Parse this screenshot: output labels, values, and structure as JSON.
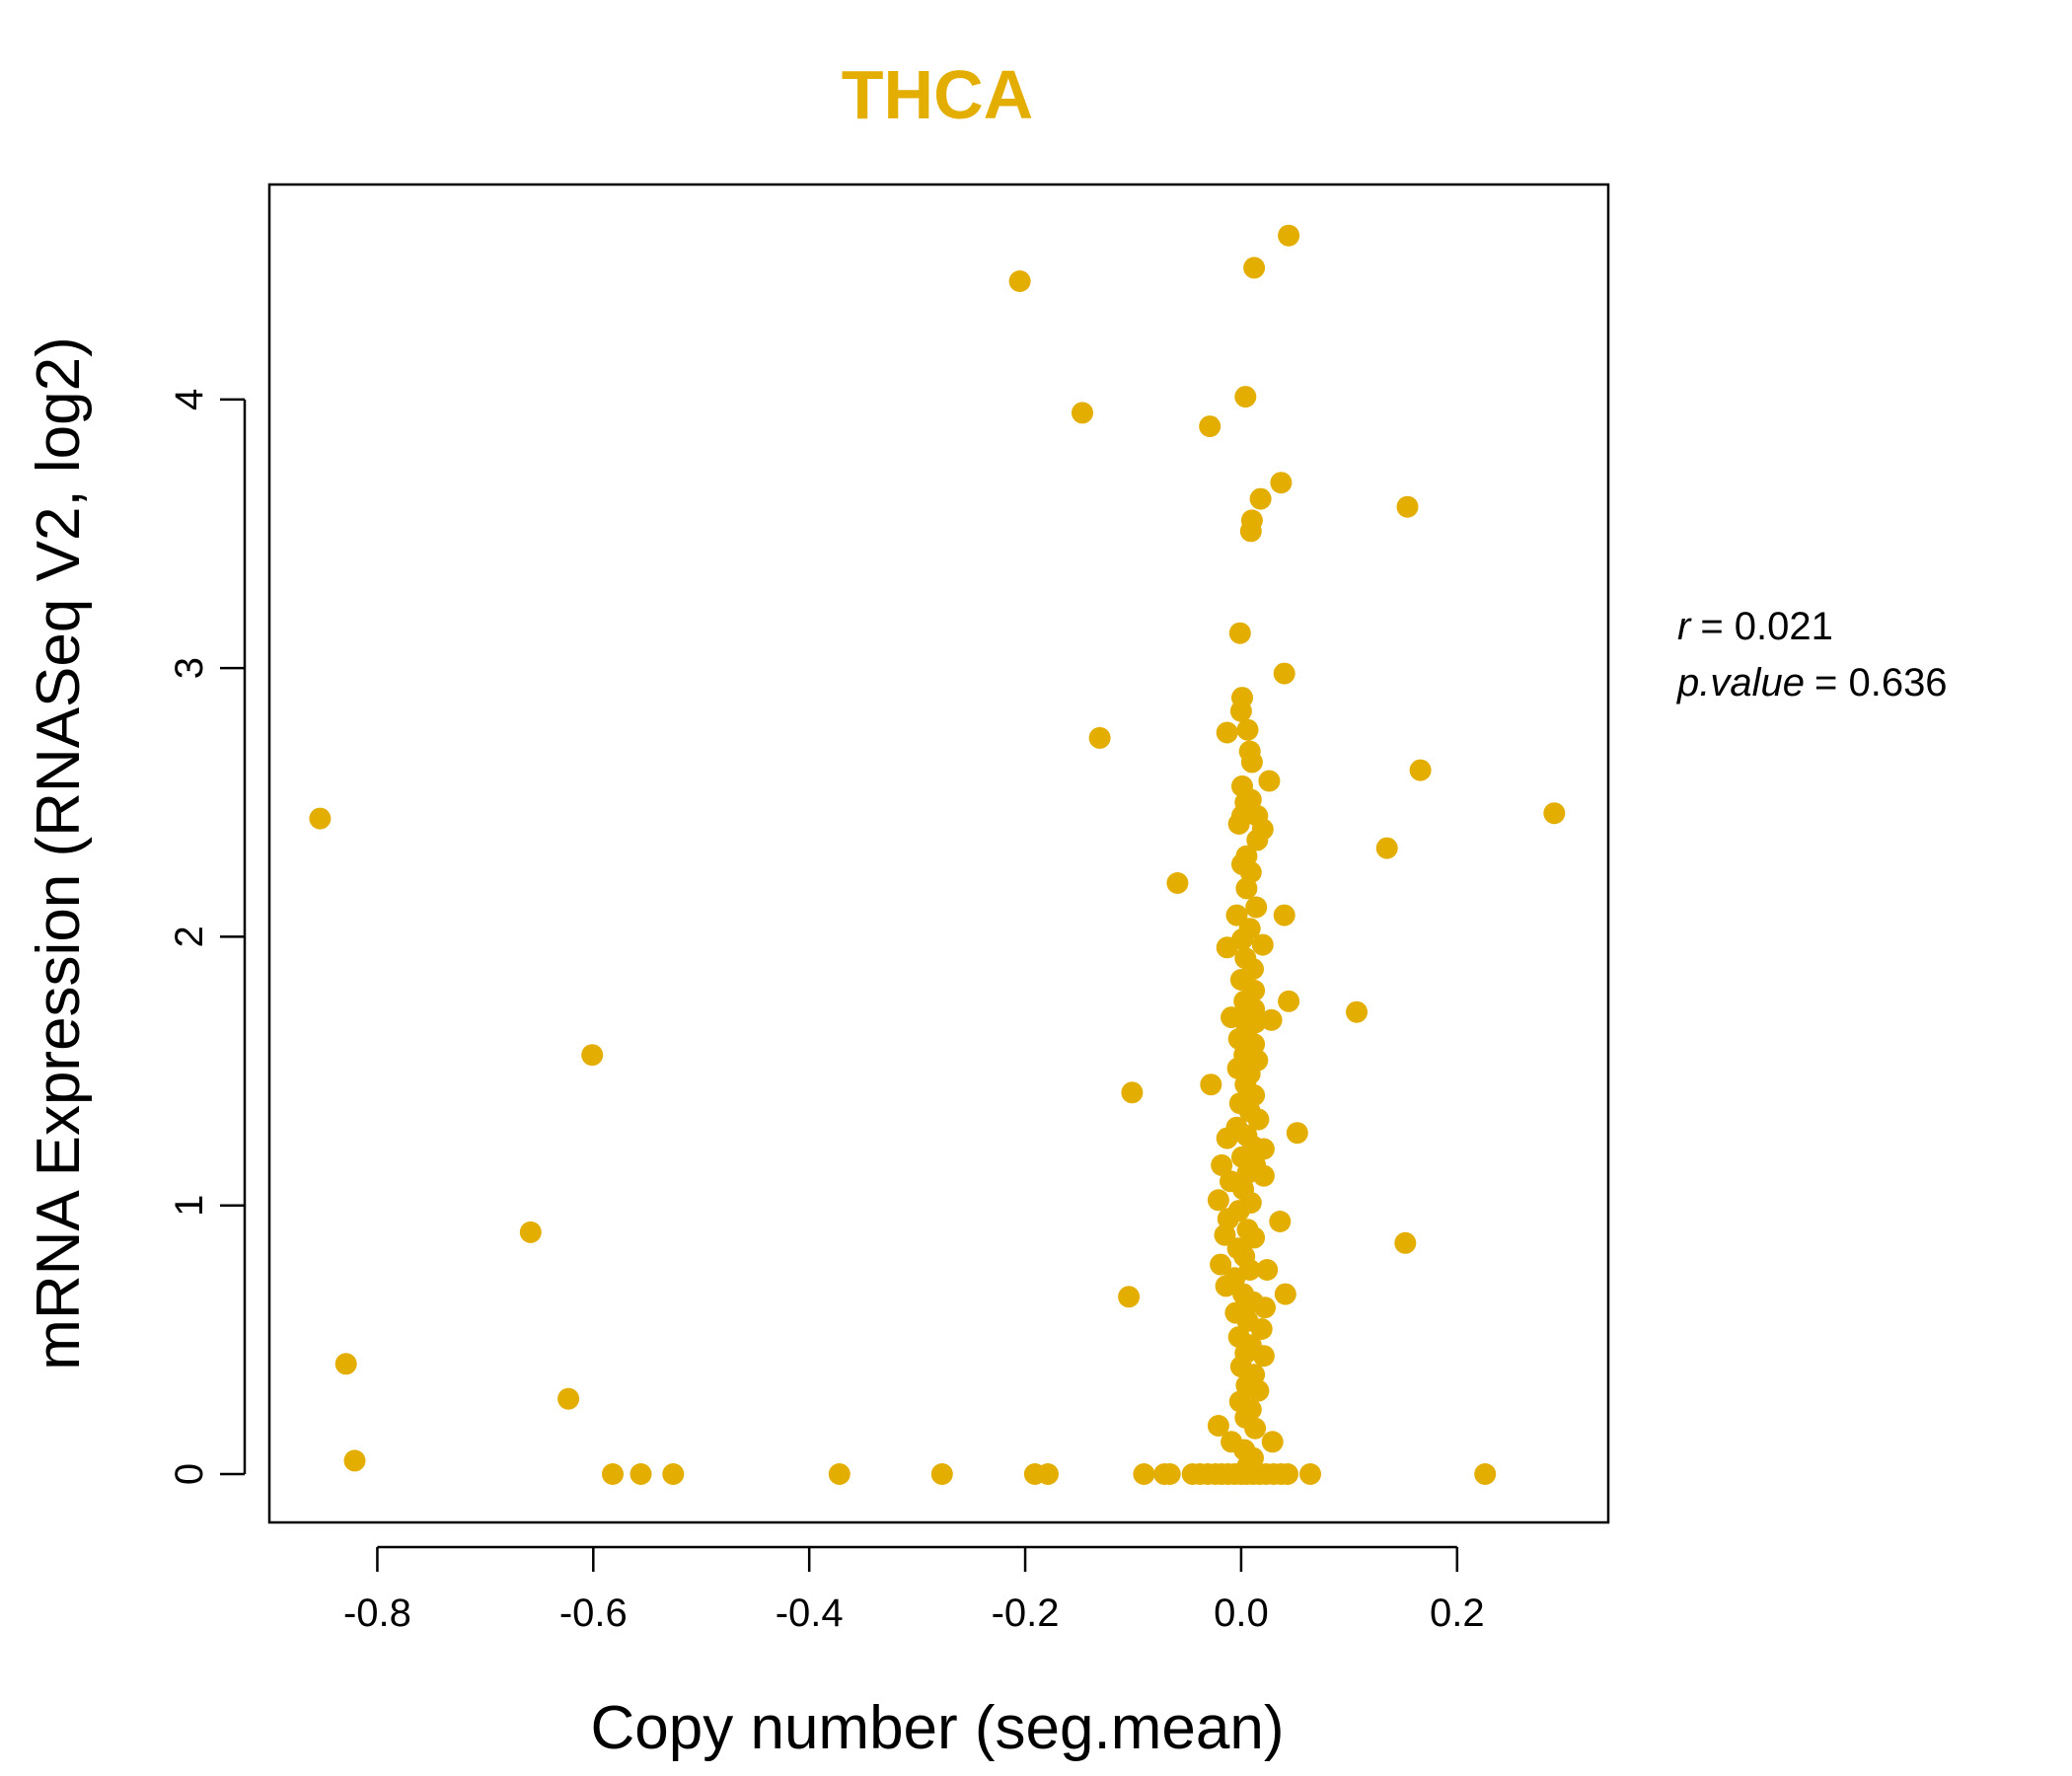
{
  "chart_data": {
    "type": "scatter",
    "title": "THCA",
    "xlabel": "Copy number (seg.mean)",
    "ylabel": "mRNA Expression (RNASeq V2, log2)",
    "xlim": [
      -0.9,
      0.34
    ],
    "ylim": [
      -0.18,
      4.8
    ],
    "x_ticks": [
      -0.8,
      -0.6,
      -0.4,
      -0.2,
      0.0,
      0.2
    ],
    "x_tick_labels": [
      "-0.8",
      "-0.6",
      "-0.4",
      "-0.2",
      "0.0",
      "0.2"
    ],
    "y_ticks": [
      0,
      1,
      2,
      3,
      4
    ],
    "y_tick_labels": [
      "0",
      "1",
      "2",
      "3",
      "4"
    ],
    "grid": false,
    "point_color": "#E3AE00",
    "stats": {
      "r_label": "r",
      "r_value": "= 0.021",
      "p_label": "p.value",
      "p_value": "= 0.636"
    },
    "points": [
      {
        "x": 0.044,
        "y": 4.61
      },
      {
        "x": 0.012,
        "y": 4.49
      },
      {
        "x": -0.205,
        "y": 4.44
      },
      {
        "x": 0.004,
        "y": 4.01
      },
      {
        "x": -0.147,
        "y": 3.95
      },
      {
        "x": -0.029,
        "y": 3.9
      },
      {
        "x": 0.037,
        "y": 3.69
      },
      {
        "x": 0.018,
        "y": 3.63
      },
      {
        "x": 0.154,
        "y": 3.6
      },
      {
        "x": 0.01,
        "y": 3.55
      },
      {
        "x": 0.009,
        "y": 3.51
      },
      {
        "x": -0.001,
        "y": 3.13
      },
      {
        "x": 0.04,
        "y": 2.98
      },
      {
        "x": 0.001,
        "y": 2.89
      },
      {
        "x": 0.0,
        "y": 2.84
      },
      {
        "x": 0.006,
        "y": 2.77
      },
      {
        "x": -0.013,
        "y": 2.76
      },
      {
        "x": -0.131,
        "y": 2.74
      },
      {
        "x": 0.008,
        "y": 2.69
      },
      {
        "x": 0.01,
        "y": 2.65
      },
      {
        "x": 0.166,
        "y": 2.62
      },
      {
        "x": 0.026,
        "y": 2.58
      },
      {
        "x": 0.001,
        "y": 2.56
      },
      {
        "x": 0.004,
        "y": 2.5
      },
      {
        "x": 0.009,
        "y": 2.51
      },
      {
        "x": -0.853,
        "y": 2.44
      },
      {
        "x": 0.29,
        "y": 2.46
      },
      {
        "x": 0.001,
        "y": 2.45
      },
      {
        "x": 0.015,
        "y": 2.45
      },
      {
        "x": -0.002,
        "y": 2.42
      },
      {
        "x": 0.02,
        "y": 2.4
      },
      {
        "x": 0.015,
        "y": 2.36
      },
      {
        "x": 0.135,
        "y": 2.33
      },
      {
        "x": 0.005,
        "y": 2.3
      },
      {
        "x": 0.001,
        "y": 2.27
      },
      {
        "x": 0.009,
        "y": 2.24
      },
      {
        "x": -0.059,
        "y": 2.2
      },
      {
        "x": 0.005,
        "y": 2.18
      },
      {
        "x": 0.014,
        "y": 2.11
      },
      {
        "x": 0.04,
        "y": 2.08
      },
      {
        "x": -0.004,
        "y": 2.08
      },
      {
        "x": 0.008,
        "y": 2.03
      },
      {
        "x": 0.001,
        "y": 1.99
      },
      {
        "x": 0.02,
        "y": 1.97
      },
      {
        "x": -0.013,
        "y": 1.96
      },
      {
        "x": 0.004,
        "y": 1.92
      },
      {
        "x": 0.011,
        "y": 1.88
      },
      {
        "x": 0.0,
        "y": 1.84
      },
      {
        "x": 0.012,
        "y": 1.8
      },
      {
        "x": 0.044,
        "y": 1.76
      },
      {
        "x": 0.003,
        "y": 1.76
      },
      {
        "x": 0.107,
        "y": 1.72
      },
      {
        "x": 0.012,
        "y": 1.73
      },
      {
        "x": 0.0,
        "y": 1.7
      },
      {
        "x": -0.009,
        "y": 1.7
      },
      {
        "x": 0.028,
        "y": 1.69
      },
      {
        "x": 0.013,
        "y": 1.68
      },
      {
        "x": 0.005,
        "y": 1.65
      },
      {
        "x": -0.002,
        "y": 1.62
      },
      {
        "x": 0.012,
        "y": 1.6
      },
      {
        "x": -0.601,
        "y": 1.56
      },
      {
        "x": 0.003,
        "y": 1.56
      },
      {
        "x": 0.015,
        "y": 1.54
      },
      {
        "x": -0.003,
        "y": 1.51
      },
      {
        "x": 0.008,
        "y": 1.49
      },
      {
        "x": -0.028,
        "y": 1.45
      },
      {
        "x": 0.004,
        "y": 1.45
      },
      {
        "x": -0.101,
        "y": 1.42
      },
      {
        "x": 0.012,
        "y": 1.41
      },
      {
        "x": -0.001,
        "y": 1.38
      },
      {
        "x": 0.008,
        "y": 1.35
      },
      {
        "x": 0.016,
        "y": 1.32
      },
      {
        "x": -0.004,
        "y": 1.29
      },
      {
        "x": 0.052,
        "y": 1.27
      },
      {
        "x": 0.005,
        "y": 1.26
      },
      {
        "x": -0.013,
        "y": 1.25
      },
      {
        "x": 0.011,
        "y": 1.22
      },
      {
        "x": 0.021,
        "y": 1.21
      },
      {
        "x": 0.001,
        "y": 1.18
      },
      {
        "x": -0.018,
        "y": 1.15
      },
      {
        "x": 0.013,
        "y": 1.15
      },
      {
        "x": 0.006,
        "y": 1.12
      },
      {
        "x": 0.021,
        "y": 1.11
      },
      {
        "x": -0.01,
        "y": 1.09
      },
      {
        "x": 0.002,
        "y": 1.06
      },
      {
        "x": -0.021,
        "y": 1.02
      },
      {
        "x": 0.009,
        "y": 1.01
      },
      {
        "x": -0.002,
        "y": 0.98
      },
      {
        "x": 0.036,
        "y": 0.94
      },
      {
        "x": -0.012,
        "y": 0.95
      },
      {
        "x": 0.006,
        "y": 0.91
      },
      {
        "x": -0.015,
        "y": 0.89
      },
      {
        "x": -0.658,
        "y": 0.9
      },
      {
        "x": 0.012,
        "y": 0.88
      },
      {
        "x": 0.152,
        "y": 0.86
      },
      {
        "x": -0.003,
        "y": 0.84
      },
      {
        "x": 0.003,
        "y": 0.81
      },
      {
        "x": -0.019,
        "y": 0.78
      },
      {
        "x": 0.024,
        "y": 0.76
      },
      {
        "x": 0.008,
        "y": 0.76
      },
      {
        "x": -0.006,
        "y": 0.73
      },
      {
        "x": -0.014,
        "y": 0.7
      },
      {
        "x": 0.041,
        "y": 0.67
      },
      {
        "x": -0.104,
        "y": 0.66
      },
      {
        "x": 0.002,
        "y": 0.67
      },
      {
        "x": 0.011,
        "y": 0.64
      },
      {
        "x": 0.022,
        "y": 0.62
      },
      {
        "x": -0.005,
        "y": 0.6
      },
      {
        "x": 0.006,
        "y": 0.57
      },
      {
        "x": 0.019,
        "y": 0.54
      },
      {
        "x": -0.002,
        "y": 0.51
      },
      {
        "x": 0.009,
        "y": 0.48
      },
      {
        "x": 0.004,
        "y": 0.45
      },
      {
        "x": 0.021,
        "y": 0.44
      },
      {
        "x": -0.829,
        "y": 0.41
      },
      {
        "x": 0.0,
        "y": 0.4
      },
      {
        "x": 0.012,
        "y": 0.37
      },
      {
        "x": 0.005,
        "y": 0.33
      },
      {
        "x": 0.016,
        "y": 0.31
      },
      {
        "x": -0.623,
        "y": 0.28
      },
      {
        "x": -0.001,
        "y": 0.27
      },
      {
        "x": 0.009,
        "y": 0.24
      },
      {
        "x": 0.004,
        "y": 0.21
      },
      {
        "x": -0.021,
        "y": 0.18
      },
      {
        "x": 0.013,
        "y": 0.17
      },
      {
        "x": 0.029,
        "y": 0.12
      },
      {
        "x": -0.009,
        "y": 0.12
      },
      {
        "x": 0.003,
        "y": 0.09
      },
      {
        "x": 0.011,
        "y": 0.06
      },
      {
        "x": -0.821,
        "y": 0.05
      },
      {
        "x": 0.006,
        "y": 0.03
      },
      {
        "x": -0.582,
        "y": 0
      },
      {
        "x": -0.556,
        "y": 0
      },
      {
        "x": -0.526,
        "y": 0
      },
      {
        "x": -0.372,
        "y": 0
      },
      {
        "x": -0.277,
        "y": 0
      },
      {
        "x": -0.191,
        "y": 0
      },
      {
        "x": -0.179,
        "y": 0
      },
      {
        "x": -0.09,
        "y": 0
      },
      {
        "x": -0.071,
        "y": 0
      },
      {
        "x": -0.066,
        "y": 0
      },
      {
        "x": -0.045,
        "y": 0
      },
      {
        "x": -0.038,
        "y": 0
      },
      {
        "x": -0.031,
        "y": 0
      },
      {
        "x": -0.024,
        "y": 0
      },
      {
        "x": -0.018,
        "y": 0
      },
      {
        "x": -0.012,
        "y": 0
      },
      {
        "x": -0.006,
        "y": 0
      },
      {
        "x": 0.0,
        "y": 0
      },
      {
        "x": 0.005,
        "y": 0
      },
      {
        "x": 0.011,
        "y": 0
      },
      {
        "x": 0.017,
        "y": 0
      },
      {
        "x": 0.023,
        "y": 0
      },
      {
        "x": 0.03,
        "y": 0
      },
      {
        "x": 0.037,
        "y": 0
      },
      {
        "x": 0.043,
        "y": 0
      },
      {
        "x": 0.064,
        "y": 0
      },
      {
        "x": 0.226,
        "y": 0
      }
    ]
  }
}
